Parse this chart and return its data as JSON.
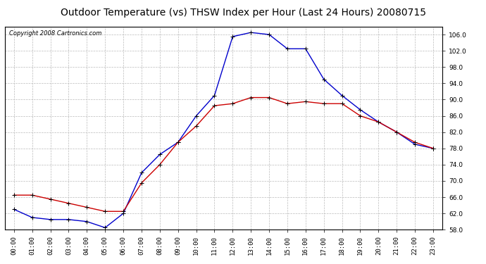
{
  "title": "Outdoor Temperature (vs) THSW Index per Hour (Last 24 Hours) 20080715",
  "copyright": "Copyright 2008 Cartronics.com",
  "hours": [
    "00:00",
    "01:00",
    "02:00",
    "03:00",
    "04:00",
    "05:00",
    "06:00",
    "07:00",
    "08:00",
    "09:00",
    "10:00",
    "11:00",
    "12:00",
    "13:00",
    "14:00",
    "15:00",
    "16:00",
    "17:00",
    "18:00",
    "19:00",
    "20:00",
    "21:00",
    "22:00",
    "23:00"
  ],
  "temp_red": [
    66.5,
    66.5,
    65.5,
    64.5,
    63.5,
    62.5,
    62.5,
    69.5,
    74.0,
    79.5,
    83.5,
    88.5,
    89.0,
    90.5,
    90.5,
    89.0,
    89.5,
    89.0,
    89.0,
    86.0,
    84.5,
    82.0,
    79.5,
    78.0
  ],
  "thsw_blue": [
    63.0,
    61.0,
    60.5,
    60.5,
    60.0,
    58.5,
    62.0,
    72.0,
    76.5,
    79.5,
    86.0,
    91.0,
    105.5,
    106.5,
    106.0,
    102.5,
    102.5,
    95.0,
    91.0,
    87.5,
    84.5,
    82.0,
    79.0,
    78.0
  ],
  "ylim": [
    58.0,
    108.0
  ],
  "yticks": [
    58.0,
    62.0,
    66.0,
    70.0,
    74.0,
    78.0,
    82.0,
    86.0,
    90.0,
    94.0,
    98.0,
    102.0,
    106.0
  ],
  "red_color": "#cc0000",
  "blue_color": "#0000cc",
  "bg_color": "#ffffff",
  "plot_bg": "#ffffff",
  "grid_color": "#bbbbbb",
  "title_fontsize": 10,
  "tick_fontsize": 6.5,
  "copyright_fontsize": 6
}
